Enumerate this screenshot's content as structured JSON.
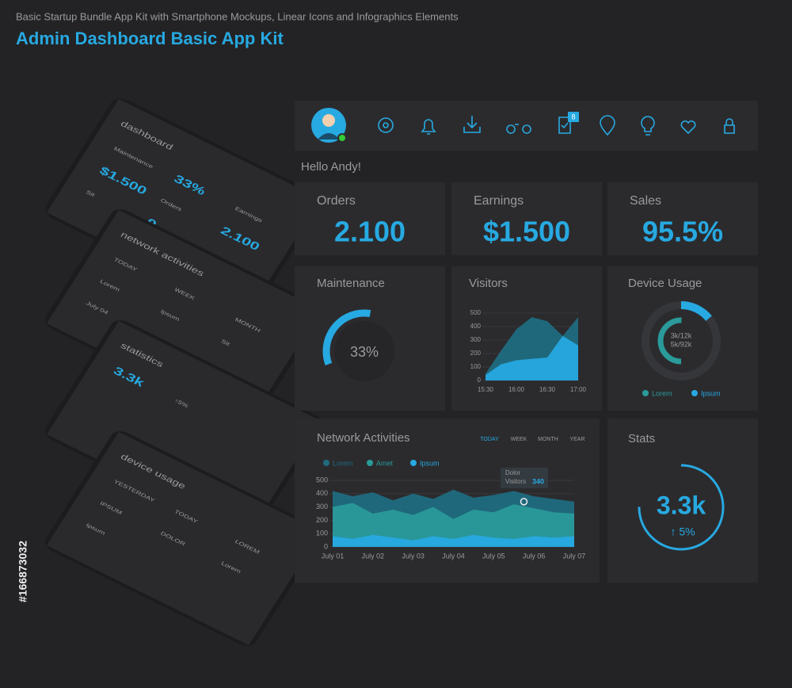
{
  "header": {
    "subtitle": "Basic Startup Bundle App Kit with Smartphone Mockups, Linear Icons and Infographics Elements",
    "title": "Admin Dashboard Basic App Kit"
  },
  "stock_id": "#166873032",
  "phones": [
    {
      "title": "dashboard",
      "items": [
        "Maintenance",
        "33%",
        "Earnings",
        "$1.500",
        "Orders",
        "2.100",
        "Sit",
        "9"
      ]
    },
    {
      "title": "network activities",
      "items": [
        "TODAY",
        "WEEK",
        "MONTH",
        "Lorem",
        "Ipsum",
        "Sit",
        "July 04"
      ]
    },
    {
      "title": "statistics",
      "items": [
        "3.3k",
        "↑5%"
      ]
    },
    {
      "title": "device usage",
      "items": [
        "YESTERDAY",
        "TODAY",
        "LOREM",
        "IPSUM",
        "DOLOR",
        "Lorem",
        "Ipsum"
      ]
    }
  ],
  "dashboard": {
    "notification_count": 8,
    "greeting": "Hello Andy!",
    "kpis": [
      {
        "label": "Orders",
        "value": "2.100"
      },
      {
        "label": "Earnings",
        "value": "$1.500"
      },
      {
        "label": "Sales",
        "value": "95.5%"
      }
    ],
    "maintenance": {
      "title": "Maintenance",
      "value": 33,
      "value_label": "33%",
      "color": "#27a9e1"
    },
    "visitors": {
      "type": "area",
      "title": "Visitors",
      "categories": [
        "15:30",
        null,
        "16:00",
        null,
        "16:30",
        null,
        "17:00"
      ],
      "series": [
        {
          "color": "#1f6b80",
          "values": [
            50,
            220,
            380,
            470,
            440,
            330,
            470
          ]
        },
        {
          "color": "#27a9e1",
          "values": [
            40,
            120,
            150,
            160,
            170,
            330,
            260
          ]
        }
      ],
      "ylim": [
        0,
        500
      ],
      "yticks": [
        0,
        100,
        200,
        300,
        400,
        500
      ]
    },
    "device_usage": {
      "title": "Device Usage",
      "labels": [
        "3k/12k",
        "5k/92k"
      ],
      "series": [
        {
          "name": "Lorem",
          "color": "#2a9a9a"
        },
        {
          "name": "Ipsum",
          "color": "#27a9e1"
        }
      ]
    },
    "network": {
      "type": "area",
      "title": "Network Activities",
      "tabs": [
        "TODAY",
        "WEEK",
        "MONTH",
        "YEAR"
      ],
      "categories": [
        "July 01",
        null,
        "July 02",
        null,
        "July 03",
        null,
        "July 04",
        null,
        "July 05",
        null,
        "July 06",
        null,
        "July 07"
      ],
      "series": [
        {
          "name": "Lorem",
          "color": "#1f6b80",
          "values": [
            420,
            380,
            410,
            350,
            400,
            360,
            430,
            370,
            390,
            420,
            380,
            360,
            340
          ]
        },
        {
          "name": "Amet",
          "color": "#2a9a9a",
          "values": [
            300,
            330,
            250,
            280,
            240,
            300,
            210,
            280,
            260,
            320,
            290,
            260,
            250
          ]
        },
        {
          "name": "Ipsum",
          "color": "#27a9e1",
          "values": [
            80,
            60,
            90,
            70,
            50,
            80,
            60,
            90,
            70,
            60,
            80,
            70,
            80
          ]
        }
      ],
      "ylim": [
        0,
        500
      ],
      "yticks": [
        0,
        100,
        200,
        300,
        400,
        500
      ],
      "tooltip": {
        "label": "Dolor",
        "sublabel": "Visitors",
        "value": 340
      }
    },
    "stats": {
      "title": "Stats",
      "value": "3.3k",
      "change": "↑ 5%"
    }
  }
}
